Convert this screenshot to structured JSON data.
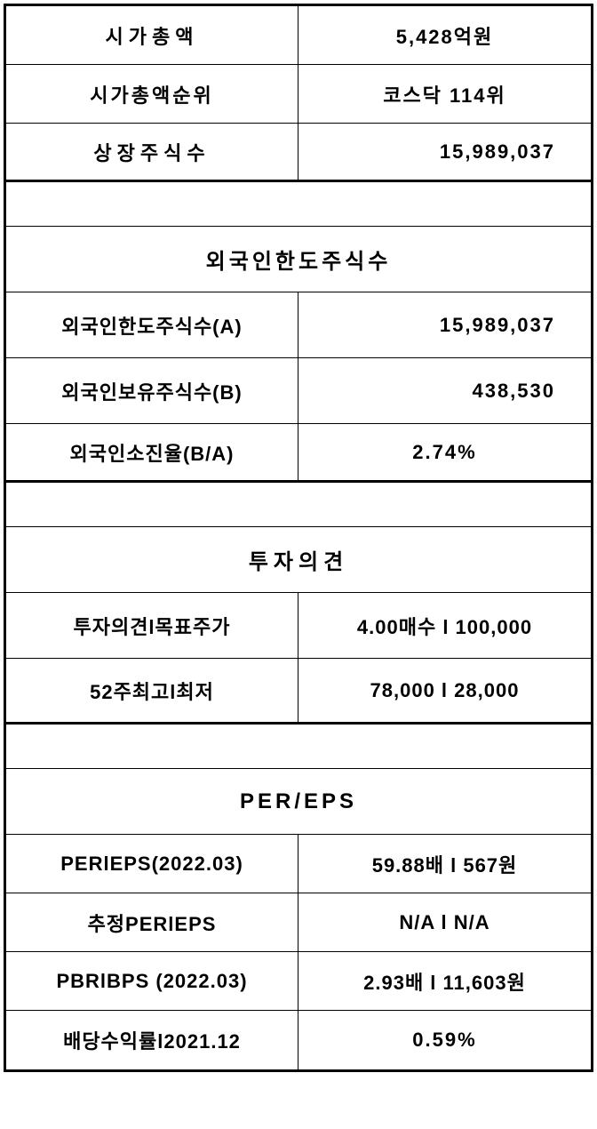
{
  "section1": {
    "rows": [
      {
        "label": "시가총액",
        "value": "5,428억원",
        "value_align": "center"
      },
      {
        "label": "시가총액순위",
        "value": "코스닥  114위",
        "value_align": "center"
      },
      {
        "label": "상장주식수",
        "value": "15,989,037",
        "value_align": "right"
      }
    ]
  },
  "section2": {
    "header": "외국인한도주식수",
    "rows": [
      {
        "label": "외국인한도주식수(A)",
        "value": "15,989,037",
        "value_align": "right"
      },
      {
        "label": "외국인보유주식수(B)",
        "value": "438,530",
        "value_align": "right"
      },
      {
        "label": "외국인소진율(B/A)",
        "value": "2.74%",
        "value_align": "center"
      }
    ]
  },
  "section3": {
    "header": "투자의견",
    "rows": [
      {
        "label": "투자의견l목표주가",
        "value": "4.00매수 l 100,000",
        "value_align": "center"
      },
      {
        "label": "52주최고l최저",
        "value": "78,000 l 28,000",
        "value_align": "center"
      }
    ]
  },
  "section4": {
    "header": "PER/EPS",
    "rows": [
      {
        "label": "PERlEPS(2022.03)",
        "value": "59.88배 l 567원",
        "value_align": "center"
      },
      {
        "label": "추정PERlEPS",
        "value": "N/A l N/A",
        "value_align": "center"
      },
      {
        "label": "PBRlBPS (2022.03)",
        "value": "2.93배 l 11,603원",
        "value_align": "center"
      },
      {
        "label": "배당수익률l2021.12",
        "value": "0.59%",
        "value_align": "center"
      }
    ]
  },
  "styling": {
    "border_color": "#000000",
    "background_color": "#ffffff",
    "text_color": "#000000",
    "outer_border_width": 3,
    "inner_border_width": 1.5,
    "font_size_label": 22,
    "font_size_header": 24,
    "font_weight": "bold"
  }
}
